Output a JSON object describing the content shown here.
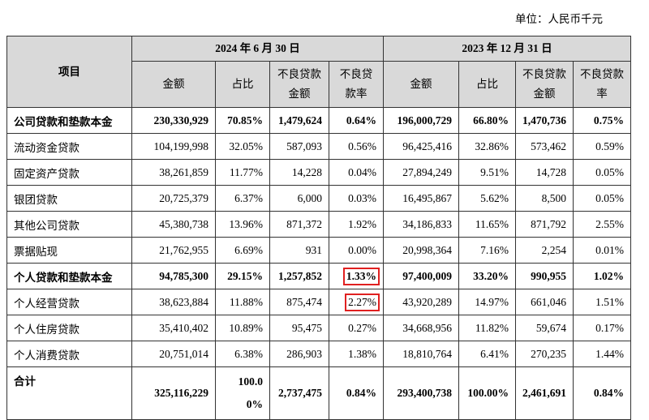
{
  "unit": "单位：人民币千元",
  "header": {
    "item": "项目",
    "periods": [
      "2024 年 6 月 30 日",
      "2023 年 12 月 31 日"
    ],
    "columns": [
      "金额",
      "占比",
      "不良贷款金额",
      "不良贷款率"
    ]
  },
  "highlight_color": "#e02020",
  "rows": [
    {
      "label": "公司贷款和垫款本金",
      "bold": true,
      "v": [
        "230,330,929",
        "70.85%",
        "1,479,624",
        "0.64%",
        "196,000,729",
        "66.80%",
        "1,470,736",
        "0.75%"
      ]
    },
    {
      "label": "流动资金贷款",
      "v": [
        "104,199,998",
        "32.05%",
        "587,093",
        "0.56%",
        "96,425,416",
        "32.86%",
        "573,462",
        "0.59%"
      ]
    },
    {
      "label": "固定资产贷款",
      "v": [
        "38,261,859",
        "11.77%",
        "14,228",
        "0.04%",
        "27,894,249",
        "9.51%",
        "14,728",
        "0.05%"
      ]
    },
    {
      "label": "银团贷款",
      "v": [
        "20,725,379",
        "6.37%",
        "6,000",
        "0.03%",
        "16,495,867",
        "5.62%",
        "8,500",
        "0.05%"
      ]
    },
    {
      "label": "其他公司贷款",
      "v": [
        "45,380,738",
        "13.96%",
        "871,372",
        "1.92%",
        "34,186,833",
        "11.65%",
        "871,792",
        "2.55%"
      ]
    },
    {
      "label": "票据贴现",
      "v": [
        "21,762,955",
        "6.69%",
        "931",
        "0.00%",
        "20,998,364",
        "7.16%",
        "2,254",
        "0.01%"
      ]
    },
    {
      "label": "个人贷款和垫款本金",
      "bold": true,
      "highlight": [
        3
      ],
      "v": [
        "94,785,300",
        "29.15%",
        "1,257,852",
        "1.33%",
        "97,400,009",
        "33.20%",
        "990,955",
        "1.02%"
      ]
    },
    {
      "label": "个人经营贷款",
      "highlight": [
        3
      ],
      "v": [
        "38,623,884",
        "11.88%",
        "875,474",
        "2.27%",
        "43,920,289",
        "14.97%",
        "661,046",
        "1.51%"
      ]
    },
    {
      "label": "个人住房贷款",
      "v": [
        "35,410,402",
        "10.89%",
        "95,475",
        "0.27%",
        "34,668,956",
        "11.82%",
        "59,674",
        "0.17%"
      ]
    },
    {
      "label": "个人消费贷款",
      "v": [
        "20,751,014",
        "6.38%",
        "286,903",
        "1.38%",
        "18,810,764",
        "6.41%",
        "270,235",
        "1.44%"
      ]
    }
  ],
  "total": {
    "label": "合计",
    "v": [
      "325,116,229",
      "100.00%",
      "2,737,475",
      "0.84%",
      "293,400,738",
      "100.00%",
      "2,461,691",
      "0.84%"
    ]
  }
}
